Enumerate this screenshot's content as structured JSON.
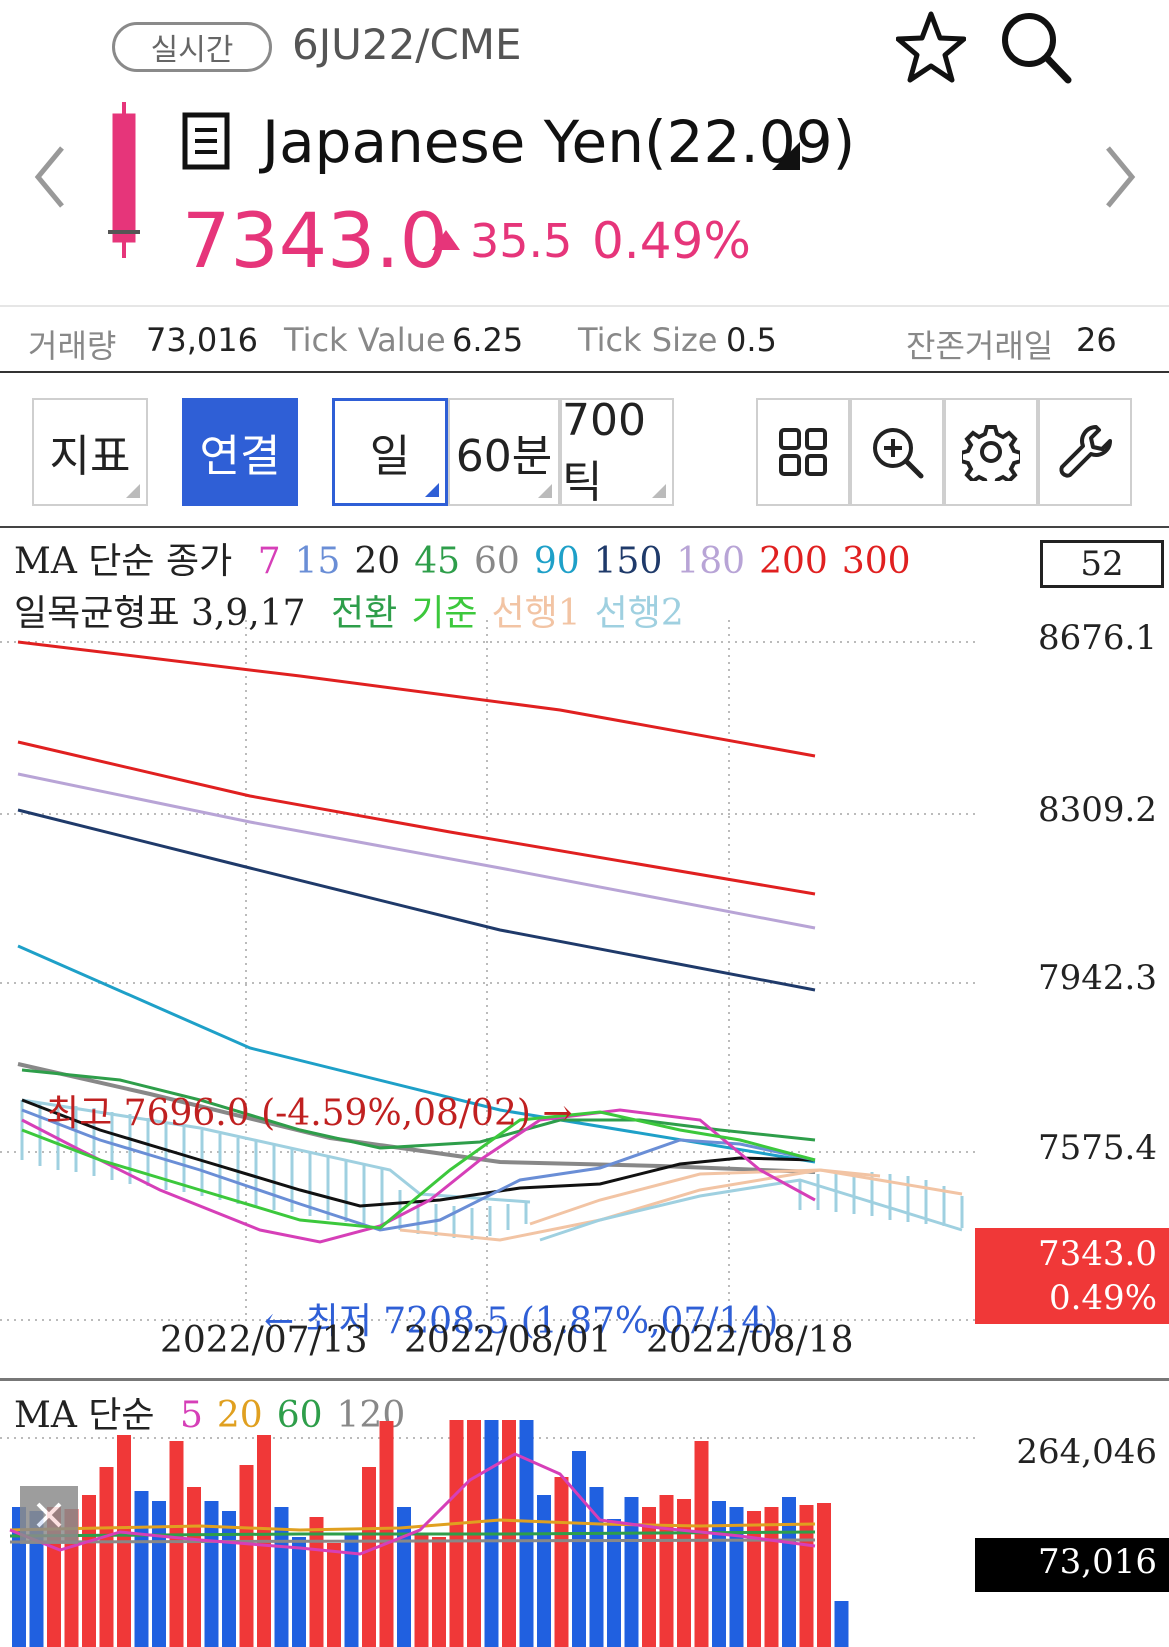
{
  "header": {
    "realtime_label": "실시간",
    "code": "6JU22/CME",
    "title": "Japanese Yen(22.09)",
    "price": "7343.0",
    "change": "35.5",
    "change_pct": "0.49%",
    "colors": {
      "up": "#e6357a"
    }
  },
  "info": {
    "volume_label": "거래량",
    "volume": "73,016",
    "tick_value_label": "Tick Value",
    "tick_value": "6.25",
    "tick_size_label": "Tick Size",
    "tick_size": "0.5",
    "days_left_label": "잔존거래일",
    "days_left": "26"
  },
  "toolbar": {
    "indicator": "지표",
    "link": "연결",
    "day": "일",
    "min60": "60분",
    "tick700": "700틱",
    "icons": [
      "grid-icon",
      "zoom-in-icon",
      "gear-icon",
      "wrench-icon"
    ]
  },
  "main_chart": {
    "ma_prefix": "MA 단순 종가",
    "ma_periods": [
      {
        "p": "7",
        "color": "#d63fb8"
      },
      {
        "p": "15",
        "color": "#6a8ed6"
      },
      {
        "p": "20",
        "color": "#222222"
      },
      {
        "p": "45",
        "color": "#2e9e4a"
      },
      {
        "p": "60",
        "color": "#888888"
      },
      {
        "p": "90",
        "color": "#1ea0c8"
      },
      {
        "p": "150",
        "color": "#1f3a6a"
      },
      {
        "p": "180",
        "color": "#b8a4d6"
      },
      {
        "p": "200",
        "color": "#e02020"
      },
      {
        "p": "300",
        "color": "#e02020"
      }
    ],
    "ichimoku_prefix": "일목균형표 3,9,17",
    "ichimoku_items": [
      {
        "t": "전환",
        "color": "#2e9e4a"
      },
      {
        "t": "기준",
        "color": "#3cc83c"
      },
      {
        "t": "선행1",
        "color": "#f2c4a4"
      },
      {
        "t": "선행2",
        "color": "#9fd0e0"
      }
    ],
    "count_box": "52",
    "y_labels": [
      "8676.1",
      "8309.2",
      "7942.3",
      "7575.4"
    ],
    "current_price": "7343.0",
    "current_pct": "0.49%",
    "high_annotation": "최고 7696.0 (-4.59%,08/02) →",
    "low_annotation": "← 최저 7208.5 (1.87%,07/14)",
    "x_labels": [
      "2022/07/13",
      "2022/08/01",
      "2022/08/18"
    ]
  },
  "volume_chart": {
    "ma_prefix": "MA 단순",
    "ma_periods": [
      {
        "p": "5",
        "color": "#d63fb8"
      },
      {
        "p": "20",
        "color": "#e0a020"
      },
      {
        "p": "60",
        "color": "#2e9e4a"
      },
      {
        "p": "120",
        "color": "#888888"
      }
    ],
    "y_label": "264,046",
    "current_volume": "73,016"
  }
}
